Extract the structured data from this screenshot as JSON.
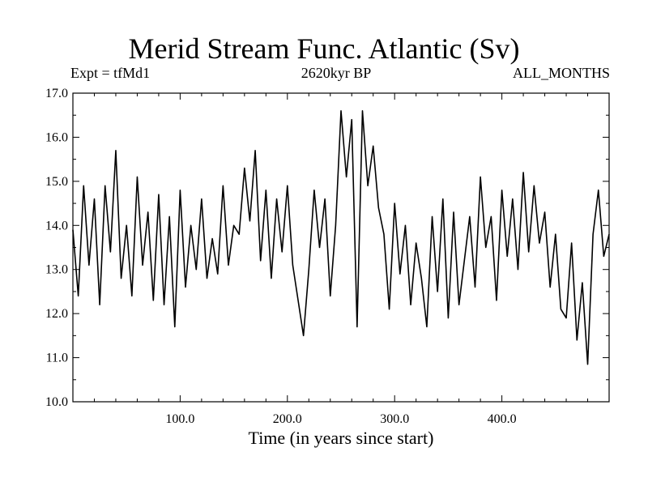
{
  "chart_data": {
    "type": "line",
    "title": "Merid Stream Func. Atlantic (Sv)",
    "subtitle": "2620kyr BP",
    "left_note": "Expt = tfMd1",
    "right_note": "ALL_MONTHS",
    "xlabel": "Time (in years since start)",
    "ylabel": "",
    "xlim": [
      0,
      500
    ],
    "ylim": [
      10.0,
      17.0
    ],
    "x_ticks": [
      100,
      200,
      300,
      400
    ],
    "x_tick_labels": [
      "100.0",
      "200.0",
      "300.0",
      "400.0"
    ],
    "y_ticks": [
      10,
      11,
      12,
      13,
      14,
      15,
      16,
      17
    ],
    "y_tick_labels": [
      "10.0",
      "11.0",
      "12.0",
      "13.0",
      "14.0",
      "15.0",
      "16.0",
      "17.0"
    ],
    "grid": false,
    "series": [
      {
        "name": "Merid Stream Func. Atlantic",
        "color": "#000000",
        "x": [
          0,
          5,
          10,
          15,
          20,
          25,
          30,
          35,
          40,
          45,
          50,
          55,
          60,
          65,
          70,
          75,
          80,
          85,
          90,
          95,
          100,
          105,
          110,
          115,
          120,
          125,
          130,
          135,
          140,
          145,
          150,
          155,
          160,
          165,
          170,
          175,
          180,
          185,
          190,
          195,
          200,
          205,
          210,
          215,
          220,
          225,
          230,
          235,
          240,
          245,
          250,
          255,
          260,
          265,
          270,
          275,
          280,
          285,
          290,
          295,
          300,
          305,
          310,
          315,
          320,
          325,
          330,
          335,
          340,
          345,
          350,
          355,
          360,
          365,
          370,
          375,
          380,
          385,
          390,
          395,
          400,
          405,
          410,
          415,
          420,
          425,
          430,
          435,
          440,
          445,
          450,
          455,
          460,
          465,
          470,
          475,
          480,
          485,
          490,
          495,
          500
        ],
        "values": [
          13.9,
          12.4,
          14.9,
          13.1,
          14.6,
          12.2,
          14.9,
          13.4,
          15.7,
          12.8,
          14.0,
          12.4,
          15.1,
          13.1,
          14.3,
          12.3,
          14.7,
          12.2,
          14.2,
          11.7,
          14.8,
          12.6,
          14.0,
          13.0,
          14.6,
          12.8,
          13.7,
          12.9,
          14.9,
          13.1,
          14.0,
          13.8,
          15.3,
          14.1,
          15.7,
          13.2,
          14.8,
          12.8,
          14.6,
          13.4,
          14.9,
          13.1,
          12.3,
          11.5,
          13.0,
          14.8,
          13.5,
          14.6,
          12.4,
          14.0,
          16.6,
          15.1,
          16.4,
          11.7,
          16.6,
          14.9,
          15.8,
          14.4,
          13.8,
          12.1,
          14.5,
          12.9,
          14.0,
          12.2,
          13.6,
          12.8,
          11.7,
          14.2,
          12.5,
          14.6,
          11.9,
          14.3,
          12.2,
          13.2,
          14.2,
          12.6,
          15.1,
          13.5,
          14.2,
          12.3,
          14.8,
          13.3,
          14.6,
          13.0,
          15.2,
          13.4,
          14.9,
          13.6,
          14.3,
          12.6,
          13.8,
          12.1,
          11.9,
          13.6,
          11.4,
          12.7,
          10.85,
          13.8,
          14.8,
          13.3,
          13.8
        ]
      }
    ]
  }
}
